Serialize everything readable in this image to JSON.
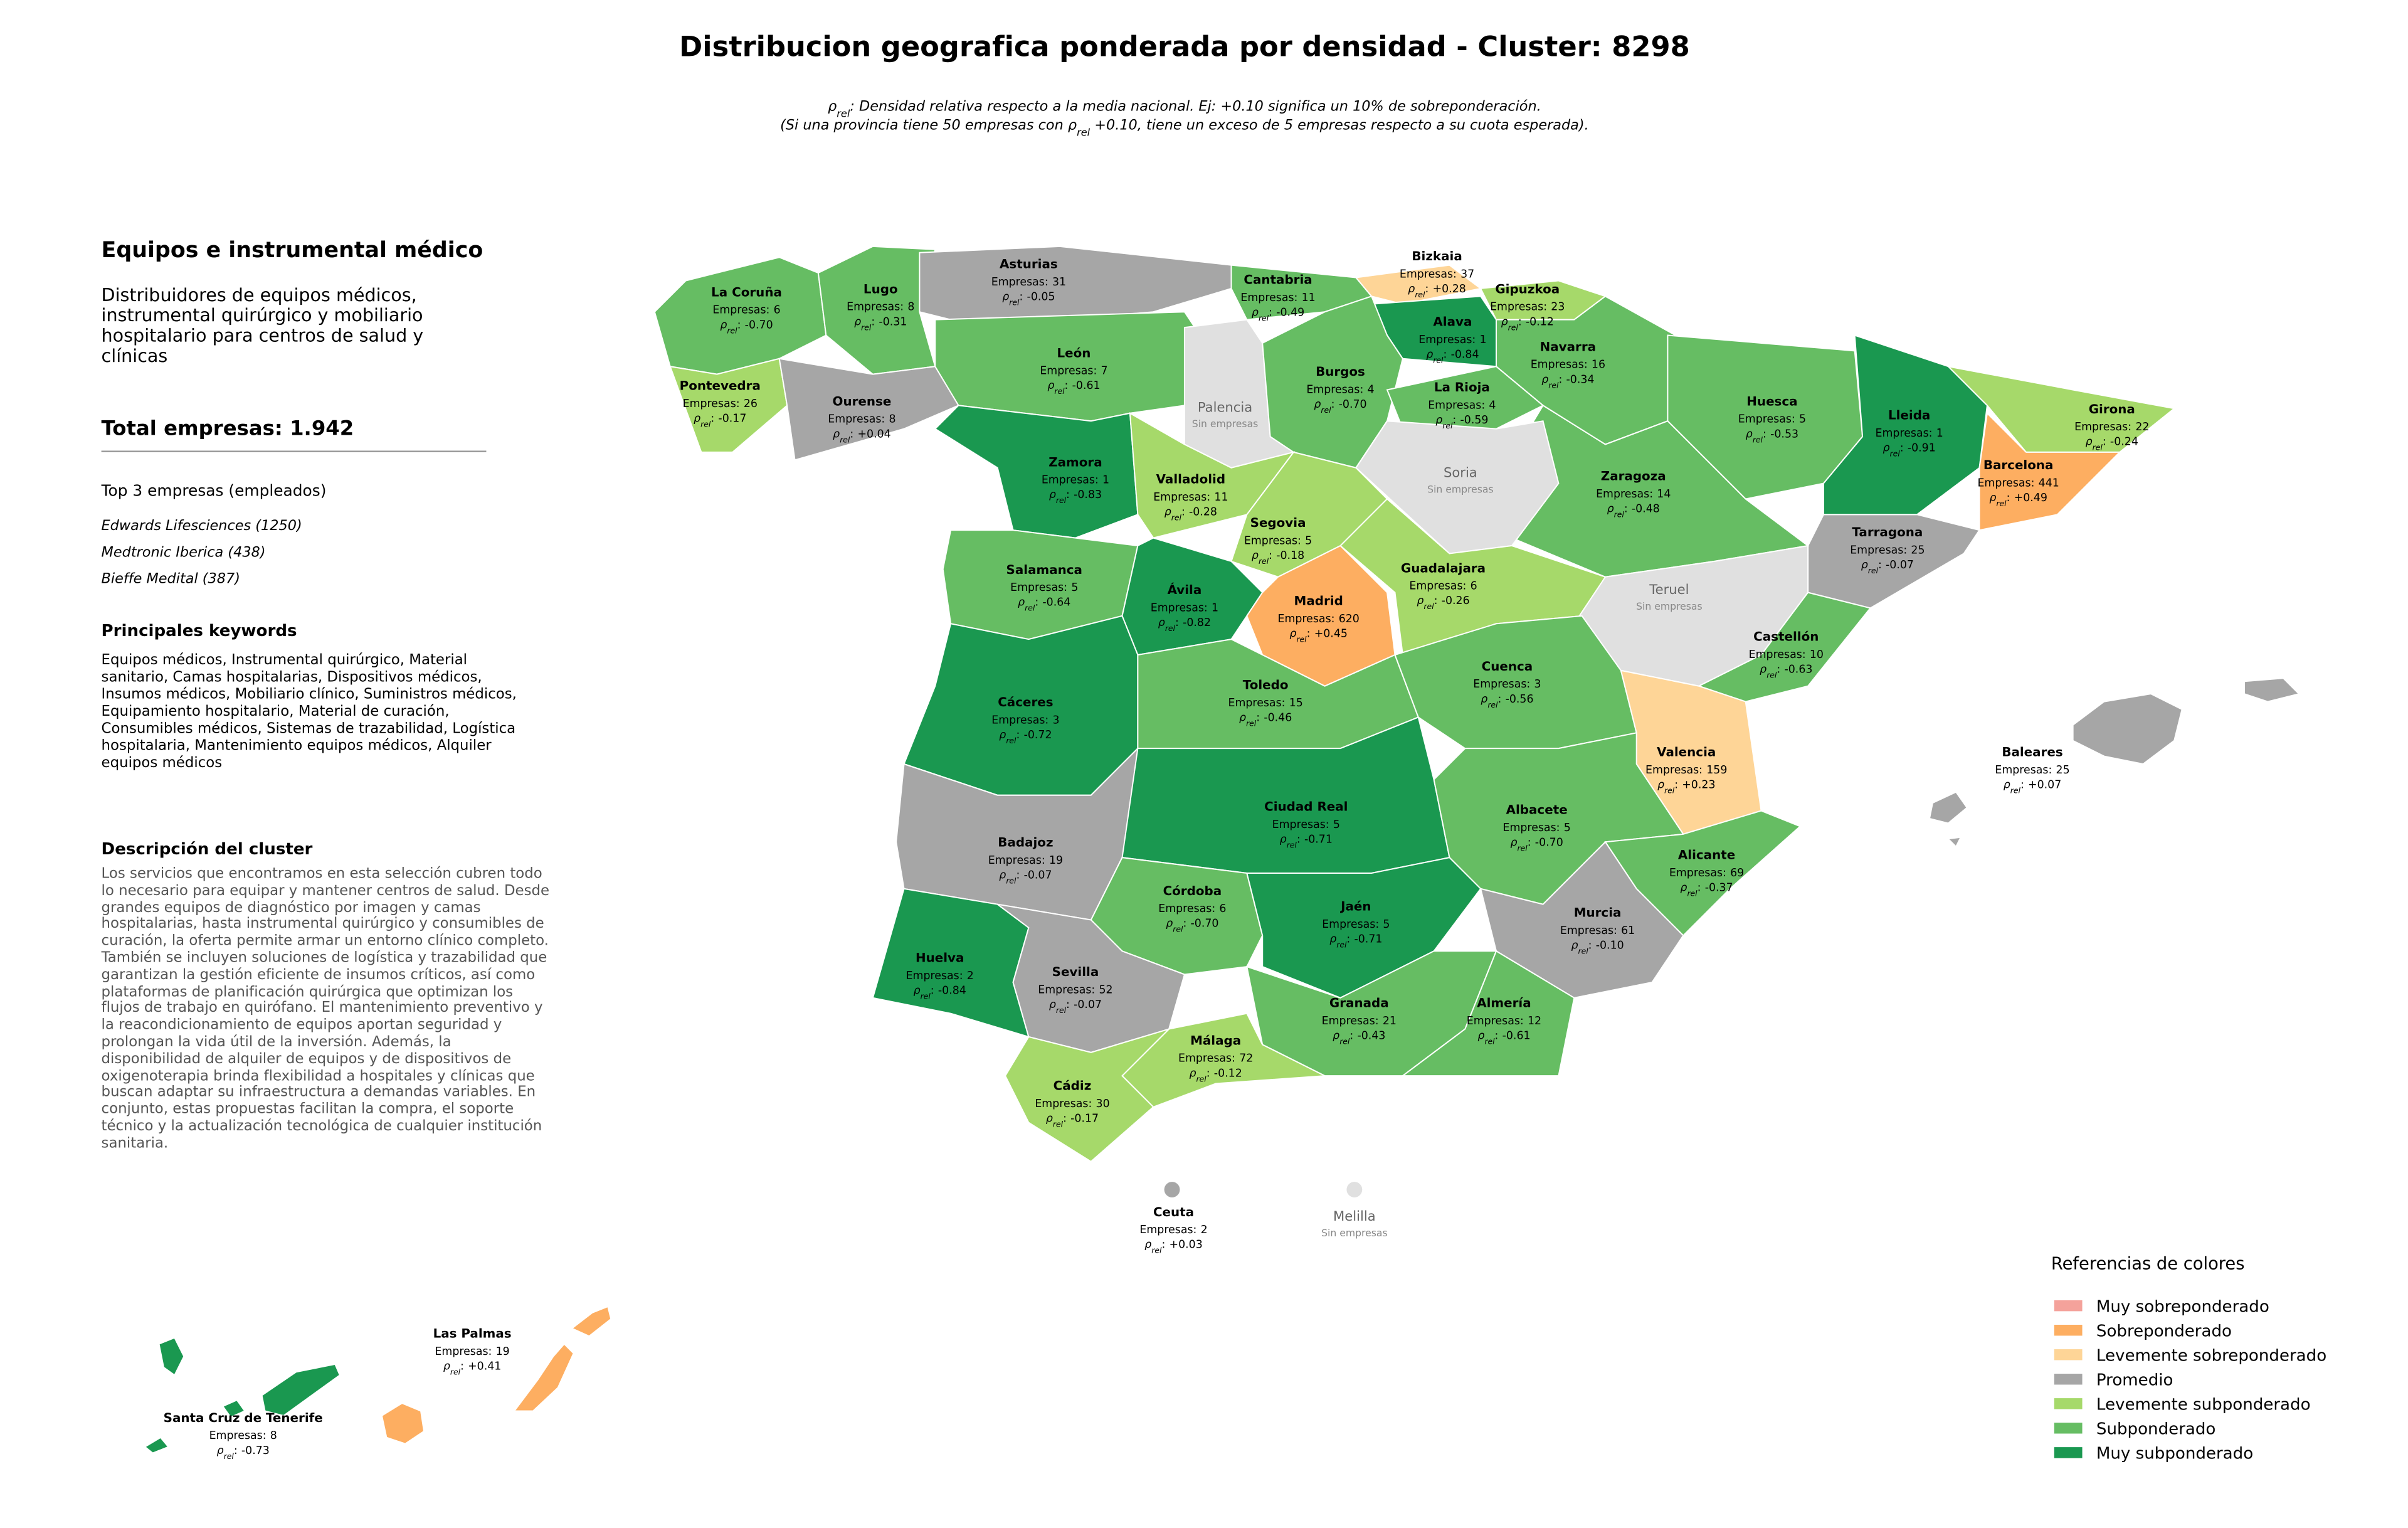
{
  "header": {
    "title": "Distribucion geografica ponderada por densidad - Cluster: 8298",
    "subtitle": [
      [
        {
          "text": "ρ"
        },
        {
          "text": "rel",
          "sub": true
        },
        {
          "text": ": Densidad relativa respecto a la media nacional. Ej: +0.10 significa un 10% de sobreponderación."
        }
      ],
      [
        {
          "text": "(Si una provincia tiene 50 empresas con "
        },
        {
          "text": "ρ"
        },
        {
          "text": "rel",
          "sub": true
        },
        {
          "text": " +0.10, tiene un exceso de 5 empresas respecto a su cuota esperada)."
        }
      ]
    ]
  },
  "sidebar": {
    "title": "Equipos e instrumental médico",
    "summary": "Distribuidores de equipos médicos, instrumental quirúrgico y mobiliario hospitalario para centros de salud y clínicas",
    "total": "Total empresas: 1.942",
    "top_title": "Top 3 empresas (empleados)",
    "top": [
      "Edwards Lifesciences (1250)",
      "Medtronic Iberica (438)",
      "Bieffe Medital (387)"
    ],
    "keywords_title": "Principales keywords",
    "keywords": "Equipos médicos, Instrumental quirúrgico, Material sanitario, Camas hospitalarias, Dispositivos médicos, Insumos médicos, Mobiliario clínico, Suministros médicos, Equipamiento hospitalario, Material de curación, Consumibles médicos, Sistemas de trazabilidad, Logística hospitalaria, Mantenimiento equipos médicos, Alquiler equipos médicos",
    "description_title": "Descripción del cluster",
    "description": "Los servicios que encontramos en esta selección cubren todo lo necesario para equipar y mantener centros de salud. Desde grandes equipos de diagnóstico por imagen y camas hospitalarias, hasta instrumental quirúrgico y consumibles de curación, la oferta permite armar un entorno clínico completo. También se incluyen soluciones de logística y trazabilidad que garantizan la gestión eficiente de insumos críticos, así como plataformas de planificación quirúrgica que optimizan los flujos de trabajo en quirófano. El mantenimiento preventivo y la reacondicionamiento de equipos aportan seguridad y prolongan la vida útil de la inversión. Además, la disponibilidad de alquiler de equipos y de dispositivos de oxigenoterapia brinda flexibilidad a hospitales y clínicas que buscan adaptar su infraestructura a demandas variables. En conjunto, estas propuestas facilitan la compra, el soporte técnico y la actualización tecnológica de cualquier institución sanitaria."
  },
  "map": {
    "labels": {
      "empresas": "Empresas:",
      "rho": "ρ",
      "rho_sub": "rel",
      "rho_sep": ":",
      "no_data": "Sin empresas"
    },
    "no_data_color": "#e0e0e0",
    "provinces": [
      {
        "name": "La Coruña",
        "empresas": 6,
        "rho": -0.7,
        "rho_label": "-0.70",
        "category": "Subponderado"
      },
      {
        "name": "Lugo",
        "empresas": 8,
        "rho": -0.31,
        "rho_label": "-0.31",
        "category": "Subponderado"
      },
      {
        "name": "Asturias",
        "empresas": 31,
        "rho": -0.05,
        "rho_label": "-0.05",
        "category": "Promedio"
      },
      {
        "name": "Cantabria",
        "empresas": 11,
        "rho": -0.49,
        "rho_label": "-0.49",
        "category": "Subponderado"
      },
      {
        "name": "Bizkaia",
        "empresas": 37,
        "rho": 0.28,
        "rho_label": "+0.28",
        "category": "Levemente sobreponderado"
      },
      {
        "name": "Gipuzkoa",
        "empresas": 23,
        "rho": -0.12,
        "rho_label": "-0.12",
        "category": "Levemente subponderado"
      },
      {
        "name": "Alava",
        "empresas": 1,
        "rho": -0.84,
        "rho_label": "-0.84",
        "category": "Muy subponderado"
      },
      {
        "name": "Navarra",
        "empresas": 16,
        "rho": -0.34,
        "rho_label": "-0.34",
        "category": "Subponderado"
      },
      {
        "name": "Pontevedra",
        "empresas": 26,
        "rho": -0.17,
        "rho_label": "-0.17",
        "category": "Levemente subponderado"
      },
      {
        "name": "Ourense",
        "empresas": 8,
        "rho": 0.04,
        "rho_label": "+0.04",
        "category": "Promedio"
      },
      {
        "name": "León",
        "empresas": 7,
        "rho": -0.61,
        "rho_label": "-0.61",
        "category": "Subponderado"
      },
      {
        "name": "Palencia",
        "empresas": null,
        "rho": null,
        "rho_label": null,
        "category": null
      },
      {
        "name": "Burgos",
        "empresas": 4,
        "rho": -0.7,
        "rho_label": "-0.70",
        "category": "Subponderado"
      },
      {
        "name": "La Rioja",
        "empresas": 4,
        "rho": -0.59,
        "rho_label": "-0.59",
        "category": "Subponderado"
      },
      {
        "name": "Huesca",
        "empresas": 5,
        "rho": -0.53,
        "rho_label": "-0.53",
        "category": "Subponderado"
      },
      {
        "name": "Lleida",
        "empresas": 1,
        "rho": -0.91,
        "rho_label": "-0.91",
        "category": "Muy subponderado"
      },
      {
        "name": "Girona",
        "empresas": 22,
        "rho": -0.24,
        "rho_label": "-0.24",
        "category": "Levemente subponderado"
      },
      {
        "name": "Barcelona",
        "empresas": 441,
        "rho": 0.49,
        "rho_label": "+0.49",
        "category": "Sobreponderado"
      },
      {
        "name": "Tarragona",
        "empresas": 25,
        "rho": -0.07,
        "rho_label": "-0.07",
        "category": "Promedio"
      },
      {
        "name": "Zaragoza",
        "empresas": 14,
        "rho": -0.48,
        "rho_label": "-0.48",
        "category": "Subponderado"
      },
      {
        "name": "Soria",
        "empresas": null,
        "rho": null,
        "rho_label": null,
        "category": null
      },
      {
        "name": "Zamora",
        "empresas": 1,
        "rho": -0.83,
        "rho_label": "-0.83",
        "category": "Muy subponderado"
      },
      {
        "name": "Valladolid",
        "empresas": 11,
        "rho": -0.28,
        "rho_label": "-0.28",
        "category": "Levemente subponderado"
      },
      {
        "name": "Segovia",
        "empresas": 5,
        "rho": -0.18,
        "rho_label": "-0.18",
        "category": "Levemente subponderado"
      },
      {
        "name": "Salamanca",
        "empresas": 5,
        "rho": -0.64,
        "rho_label": "-0.64",
        "category": "Subponderado"
      },
      {
        "name": "Ávila",
        "empresas": 1,
        "rho": -0.82,
        "rho_label": "-0.82",
        "category": "Muy subponderado"
      },
      {
        "name": "Madrid",
        "empresas": 620,
        "rho": 0.45,
        "rho_label": "+0.45",
        "category": "Sobreponderado"
      },
      {
        "name": "Guadalajara",
        "empresas": 6,
        "rho": -0.26,
        "rho_label": "-0.26",
        "category": "Levemente subponderado"
      },
      {
        "name": "Teruel",
        "empresas": null,
        "rho": null,
        "rho_label": null,
        "category": null
      },
      {
        "name": "Castellón",
        "empresas": 10,
        "rho": -0.63,
        "rho_label": "-0.63",
        "category": "Subponderado"
      },
      {
        "name": "Cáceres",
        "empresas": 3,
        "rho": -0.72,
        "rho_label": "-0.72",
        "category": "Muy subponderado"
      },
      {
        "name": "Toledo",
        "empresas": 15,
        "rho": -0.46,
        "rho_label": "-0.46",
        "category": "Subponderado"
      },
      {
        "name": "Cuenca",
        "empresas": 3,
        "rho": -0.56,
        "rho_label": "-0.56",
        "category": "Subponderado"
      },
      {
        "name": "Valencia",
        "empresas": 159,
        "rho": 0.23,
        "rho_label": "+0.23",
        "category": "Levemente sobreponderado"
      },
      {
        "name": "Badajoz",
        "empresas": 19,
        "rho": -0.07,
        "rho_label": "-0.07",
        "category": "Promedio"
      },
      {
        "name": "Ciudad Real",
        "empresas": 5,
        "rho": -0.71,
        "rho_label": "-0.71",
        "category": "Muy subponderado"
      },
      {
        "name": "Albacete",
        "empresas": 5,
        "rho": -0.7,
        "rho_label": "-0.70",
        "category": "Subponderado"
      },
      {
        "name": "Alicante",
        "empresas": 69,
        "rho": -0.37,
        "rho_label": "-0.37",
        "category": "Subponderado"
      },
      {
        "name": "Córdoba",
        "empresas": 6,
        "rho": -0.7,
        "rho_label": "-0.70",
        "category": "Subponderado"
      },
      {
        "name": "Jaén",
        "empresas": 5,
        "rho": -0.71,
        "rho_label": "-0.71",
        "category": "Muy subponderado"
      },
      {
        "name": "Murcia",
        "empresas": 61,
        "rho": -0.1,
        "rho_label": "-0.10",
        "category": "Promedio"
      },
      {
        "name": "Huelva",
        "empresas": 2,
        "rho": -0.84,
        "rho_label": "-0.84",
        "category": "Muy subponderado"
      },
      {
        "name": "Sevilla",
        "empresas": 52,
        "rho": -0.07,
        "rho_label": "-0.07",
        "category": "Promedio"
      },
      {
        "name": "Granada",
        "empresas": 21,
        "rho": -0.43,
        "rho_label": "-0.43",
        "category": "Subponderado"
      },
      {
        "name": "Almería",
        "empresas": 12,
        "rho": -0.61,
        "rho_label": "-0.61",
        "category": "Subponderado"
      },
      {
        "name": "Málaga",
        "empresas": 72,
        "rho": -0.12,
        "rho_label": "-0.12",
        "category": "Levemente subponderado"
      },
      {
        "name": "Cádiz",
        "empresas": 30,
        "rho": -0.17,
        "rho_label": "-0.17",
        "category": "Levemente subponderado"
      },
      {
        "name": "Baleares",
        "empresas": 25,
        "rho": 0.07,
        "rho_label": "+0.07",
        "category": "Promedio"
      },
      {
        "name": "Ceuta",
        "empresas": 2,
        "rho": 0.03,
        "rho_label": "+0.03",
        "category": "Promedio"
      },
      {
        "name": "Melilla",
        "empresas": null,
        "rho": null,
        "rho_label": null,
        "category": null
      },
      {
        "name": "Las Palmas",
        "empresas": 19,
        "rho": 0.41,
        "rho_label": "+0.41",
        "category": "Sobreponderado"
      },
      {
        "name": "Santa Cruz de Tenerife",
        "empresas": 8,
        "rho": -0.73,
        "rho_label": "-0.73",
        "category": "Muy subponderado"
      }
    ]
  },
  "legend": {
    "title": "Referencias de colores",
    "items": [
      {
        "name": "Muy sobreponderado",
        "color": "#f4a29b"
      },
      {
        "name": "Sobreponderado",
        "color": "#fdae61"
      },
      {
        "name": "Levemente sobreponderado",
        "color": "#fed597"
      },
      {
        "name": "Promedio",
        "color": "#a6a6a6"
      },
      {
        "name": "Levemente subponderado",
        "color": "#a6d96a"
      },
      {
        "name": "Subponderado",
        "color": "#66bd63"
      },
      {
        "name": "Muy subponderado",
        "color": "#1a9850"
      }
    ]
  }
}
